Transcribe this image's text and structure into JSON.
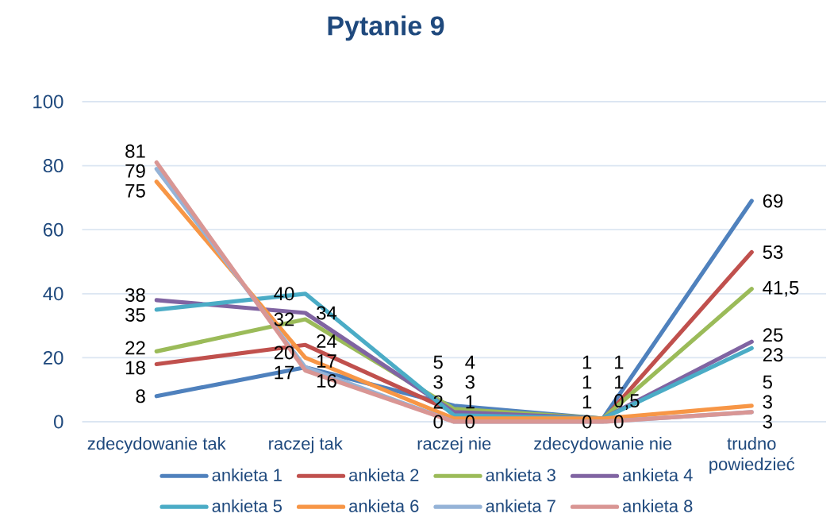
{
  "chart_data": {
    "type": "line",
    "title": "Pytanie 9",
    "categories": [
      "zdecydowanie tak",
      "raczej tak",
      "raczej nie",
      "zdecydowanie nie",
      "trudno powiedzieć"
    ],
    "series": [
      {
        "name": "ankieta 1",
        "color": "#4f81bd",
        "values": [
          8,
          17,
          5,
          1,
          69
        ],
        "value_labels": [
          "8",
          "17",
          "5",
          "1",
          "69"
        ]
      },
      {
        "name": "ankieta 2",
        "color": "#c0504d",
        "values": [
          18,
          24,
          3,
          0.5,
          53
        ],
        "value_labels": [
          "18",
          "24",
          "3",
          "0,5",
          "53"
        ]
      },
      {
        "name": "ankieta 3",
        "color": "#9bbb59",
        "values": [
          22,
          32,
          4,
          1,
          41.5
        ],
        "value_labels": [
          "22",
          "32",
          "4",
          "1",
          "41,5"
        ]
      },
      {
        "name": "ankieta 4",
        "color": "#8064a2",
        "values": [
          38,
          34,
          3,
          1,
          25
        ],
        "value_labels": [
          "38",
          "34",
          "3",
          "1",
          "25"
        ]
      },
      {
        "name": "ankieta 5",
        "color": "#4bacc6",
        "values": [
          35,
          40,
          2,
          1,
          23
        ],
        "value_labels": [
          "35",
          "40",
          "2",
          "1",
          "23"
        ]
      },
      {
        "name": "ankieta 6",
        "color": "#f79646",
        "values": [
          75,
          20,
          1,
          1,
          5
        ],
        "value_labels": [
          "75",
          "20",
          "1",
          "1",
          "5"
        ]
      },
      {
        "name": "ankieta 7",
        "color": "#95b3d7",
        "values": [
          79,
          17,
          0,
          0,
          3
        ],
        "value_labels": [
          "79",
          "17",
          "0",
          "0",
          "3"
        ]
      },
      {
        "name": "ankieta 8",
        "color": "#d99694",
        "values": [
          81,
          16,
          0,
          0,
          3
        ],
        "value_labels": [
          "81",
          "16",
          "0",
          "0",
          "3"
        ]
      }
    ],
    "ylim": [
      0,
      100
    ],
    "yticks": [
      0,
      20,
      40,
      60,
      80,
      100
    ],
    "grid": "y",
    "legend": "bottom"
  }
}
